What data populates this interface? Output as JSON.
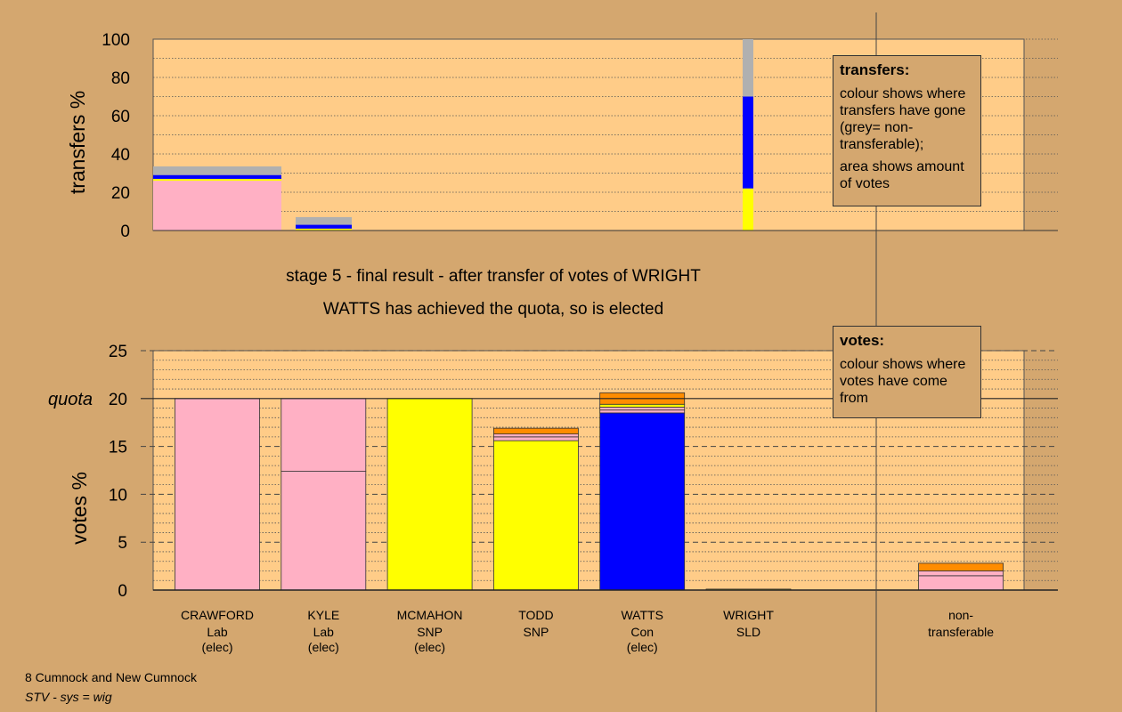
{
  "chart_data": [
    {
      "type": "bar",
      "stacked": true,
      "ylabel": "transfers %",
      "ylim": [
        0,
        100
      ],
      "yticks": [
        0,
        20,
        40,
        60,
        80,
        100
      ],
      "grid": true,
      "bars": [
        {
          "segments": [
            {
              "value": 26,
              "color": "#ffb0c4"
            },
            {
              "value": 1,
              "color": "#ffff00"
            },
            {
              "value": 2,
              "color": "#0000ff"
            },
            {
              "value": 4.5,
              "color": "#b0b0b0"
            }
          ]
        },
        {
          "segments": [
            {
              "value": 1,
              "color": "#ffff00"
            },
            {
              "value": 2,
              "color": "#0000ff"
            },
            {
              "value": 4,
              "color": "#b0b0b0"
            }
          ]
        },
        {
          "segments": [
            {
              "value": 22,
              "color": "#ffff00"
            },
            {
              "value": 48,
              "color": "#0000ff"
            },
            {
              "value": 30,
              "color": "#b0b0b0"
            }
          ]
        }
      ]
    },
    {
      "type": "bar",
      "stacked": true,
      "ylabel": "votes %",
      "ylim": [
        0,
        25
      ],
      "yticks": [
        0,
        5,
        10,
        15,
        20,
        25
      ],
      "quota": 20,
      "quota_label": "quota",
      "grid": true,
      "categories": [
        {
          "name": "CRAWFORD",
          "party": "Lab",
          "status": "(elec)"
        },
        {
          "name": "KYLE",
          "party": "Lab",
          "status": "(elec)"
        },
        {
          "name": "MCMAHON",
          "party": "SNP",
          "status": "(elec)"
        },
        {
          "name": "TODD",
          "party": "SNP",
          "status": ""
        },
        {
          "name": "WATTS",
          "party": "Con",
          "status": "(elec)"
        },
        {
          "name": "WRIGHT",
          "party": "SLD",
          "status": ""
        },
        {
          "name": "",
          "party": "",
          "status": ""
        },
        {
          "name": "non-",
          "party": "transferable",
          "status": ""
        }
      ],
      "bars": [
        {
          "segments": [
            {
              "value": 20,
              "color": "#ffb0c4"
            }
          ]
        },
        {
          "segments": [
            {
              "value": 12.4,
              "color": "#ffb0c4"
            },
            {
              "value": 7.6,
              "color": "#ffb0c4"
            }
          ]
        },
        {
          "segments": [
            {
              "value": 20,
              "color": "#ffff00"
            }
          ]
        },
        {
          "segments": [
            {
              "value": 15.6,
              "color": "#ffff00"
            },
            {
              "value": 0.4,
              "color": "#ffb0c4"
            },
            {
              "value": 0.3,
              "color": "#ffb0c4"
            },
            {
              "value": 0.6,
              "color": "#ff8c00"
            }
          ]
        },
        {
          "segments": [
            {
              "value": 18.5,
              "color": "#0000ff"
            },
            {
              "value": 0.3,
              "color": "#ffb0c4"
            },
            {
              "value": 0.3,
              "color": "#ffb0c4"
            },
            {
              "value": 0.3,
              "color": "#ffff00"
            },
            {
              "value": 1.2,
              "color": "#ff8c00"
            }
          ]
        },
        {
          "segments": [
            {
              "value": 0.1,
              "color": "#ffff00"
            }
          ]
        },
        {
          "segments": []
        },
        {
          "segments": [
            {
              "value": 1.5,
              "color": "#ffb0c4"
            },
            {
              "value": 0.5,
              "color": "#ffb0c4"
            },
            {
              "value": 0.8,
              "color": "#ff8c00"
            }
          ]
        }
      ]
    }
  ],
  "title_line1": "stage 5 - final result - after transfer of votes of WRIGHT",
  "title_line2": "WATTS has achieved the quota, so is elected",
  "legend_transfers": {
    "title": "transfers:",
    "text1": "colour shows where transfers have gone (grey= non-transferable);",
    "text2": "area shows amount of votes"
  },
  "legend_votes": {
    "title": "votes:",
    "text1": "colour shows where votes have come from"
  },
  "footer": {
    "line1": "8 Cumnock and New Cumnock",
    "line2": "STV - sys = wig"
  }
}
